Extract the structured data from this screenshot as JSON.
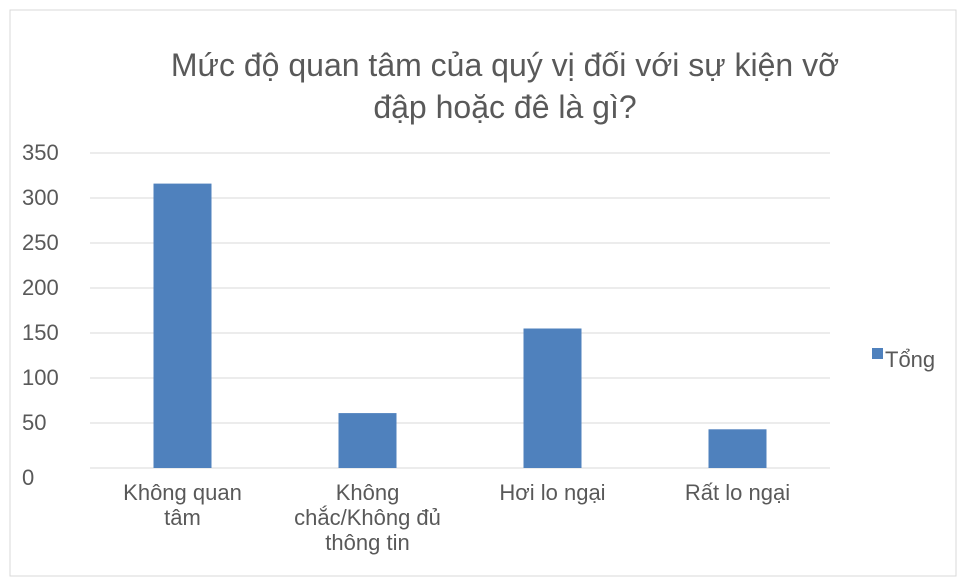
{
  "chart_data": {
    "type": "bar",
    "title": "Mức độ quan tâm của quý vị đối với sự kiện vỡ đập hoặc đê là gì?",
    "categories": [
      "Không quan tâm",
      "Không chắc/Không đủ thông tin",
      "Hơi lo ngại",
      "Rất lo ngại"
    ],
    "series": [
      {
        "name": "Tổng",
        "color": "#4f81bd",
        "values": [
          316,
          61,
          155,
          43
        ]
      }
    ],
    "ylim": [
      0,
      350
    ],
    "yticks": [
      0,
      50,
      100,
      150,
      200,
      250,
      300,
      350
    ],
    "grid": true,
    "legend": "right"
  }
}
